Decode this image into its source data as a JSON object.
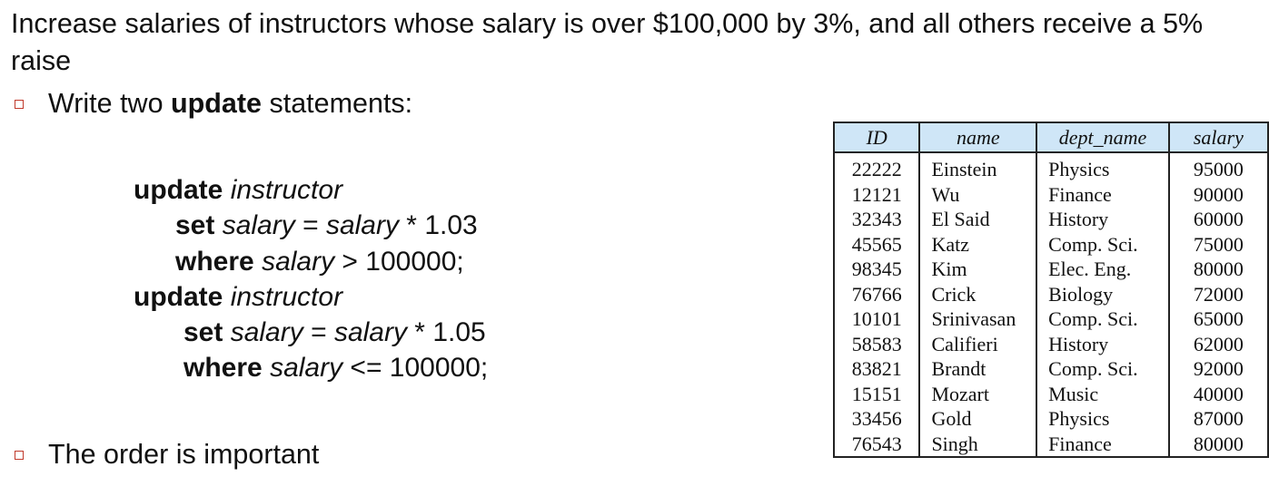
{
  "intro": "Increase salaries of instructors whose salary is over $100,000 by 3%, and all others receive a 5% raise",
  "bullet1": {
    "prefix": "Write two ",
    "bold": "update",
    "suffix": " statements:"
  },
  "code": [
    {
      "indent": 0,
      "parts": [
        {
          "t": "update",
          "s": "kw"
        },
        {
          "t": " ",
          "s": ""
        },
        {
          "t": "instructor",
          "s": "it"
        }
      ]
    },
    {
      "indent": 1,
      "parts": [
        {
          "t": "set",
          "s": "kw"
        },
        {
          "t": " ",
          "s": ""
        },
        {
          "t": "salary",
          "s": "it"
        },
        {
          "t": " = ",
          "s": ""
        },
        {
          "t": "salary",
          "s": "it"
        },
        {
          "t": " * 1.03",
          "s": ""
        }
      ]
    },
    {
      "indent": 1,
      "parts": [
        {
          "t": "where",
          "s": "kw"
        },
        {
          "t": " ",
          "s": ""
        },
        {
          "t": "salary",
          "s": "it"
        },
        {
          "t": " > 100000;",
          "s": ""
        }
      ]
    },
    {
      "indent": 0,
      "parts": [
        {
          "t": "update",
          "s": "kw"
        },
        {
          "t": " ",
          "s": ""
        },
        {
          "t": "instructor",
          "s": "it"
        }
      ]
    },
    {
      "indent": 2,
      "parts": [
        {
          "t": "set",
          "s": "kw"
        },
        {
          "t": " ",
          "s": ""
        },
        {
          "t": "salary",
          "s": "it"
        },
        {
          "t": " = ",
          "s": ""
        },
        {
          "t": "salary",
          "s": "it"
        },
        {
          "t": " * 1.05",
          "s": ""
        }
      ]
    },
    {
      "indent": 2,
      "parts": [
        {
          "t": "where",
          "s": "kw"
        },
        {
          "t": " ",
          "s": ""
        },
        {
          "t": "salary",
          "s": "it"
        },
        {
          "t": " <= 100000;",
          "s": ""
        }
      ]
    }
  ],
  "bullet2": "The order is important",
  "table": {
    "header_color": "#cfe6f7",
    "columns": [
      "ID",
      "name",
      "dept_name",
      "salary"
    ],
    "rows": [
      [
        "22222",
        "Einstein",
        "Physics",
        "95000"
      ],
      [
        "12121",
        "Wu",
        "Finance",
        "90000"
      ],
      [
        "32343",
        "El Said",
        "History",
        "60000"
      ],
      [
        "45565",
        "Katz",
        "Comp. Sci.",
        "75000"
      ],
      [
        "98345",
        "Kim",
        "Elec. Eng.",
        "80000"
      ],
      [
        "76766",
        "Crick",
        "Biology",
        "72000"
      ],
      [
        "10101",
        "Srinivasan",
        "Comp. Sci.",
        "65000"
      ],
      [
        "58583",
        "Califieri",
        "History",
        "62000"
      ],
      [
        "83821",
        "Brandt",
        "Comp. Sci.",
        "92000"
      ],
      [
        "15151",
        "Mozart",
        "Music",
        "40000"
      ],
      [
        "33456",
        "Gold",
        "Physics",
        "87000"
      ],
      [
        "76543",
        "Singh",
        "Finance",
        "80000"
      ]
    ]
  }
}
